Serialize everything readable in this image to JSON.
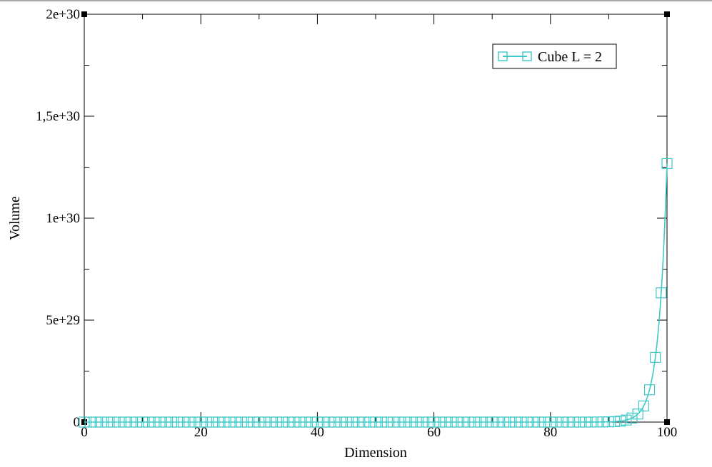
{
  "chart_data": {
    "type": "line",
    "title": "",
    "xlabel": "Dimension",
    "ylabel": "Volume",
    "xlim": [
      0,
      100
    ],
    "ylim": [
      0,
      2e+30
    ],
    "x_ticks": [
      0,
      20,
      40,
      60,
      80,
      100
    ],
    "x_tick_labels": [
      "0",
      "20",
      "40",
      "60",
      "80",
      "100"
    ],
    "y_ticks": [
      0,
      5e+29,
      1e+30,
      1.5e+30,
      2e+30
    ],
    "y_tick_labels": [
      "0",
      "5e+29",
      "1e+30",
      "1,5e+30",
      "2e+30"
    ],
    "grid": false,
    "legend": {
      "position": "top-right"
    },
    "series": [
      {
        "name": "Cube L = 2",
        "color": "#3ec8c8",
        "marker": "square",
        "x_start": 0,
        "x_end": 100,
        "x_step": 1,
        "formula": "y = 2^x"
      }
    ]
  }
}
